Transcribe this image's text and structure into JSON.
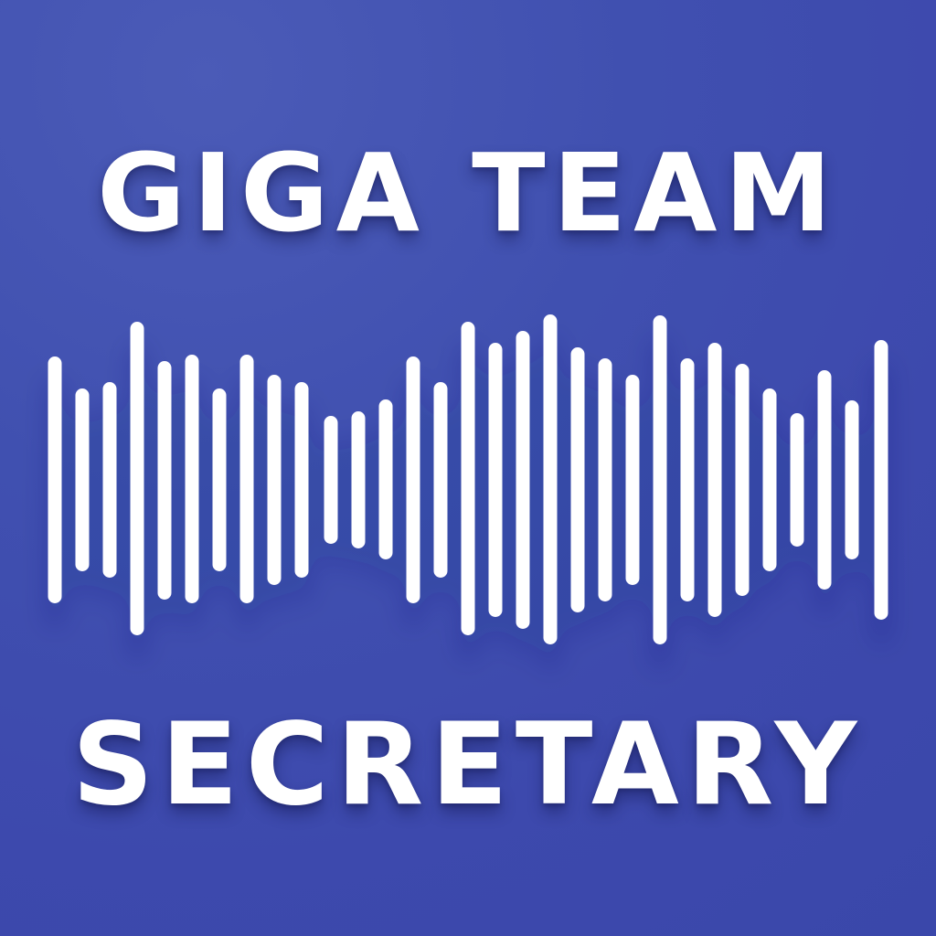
{
  "logo": {
    "line1": "GIGA TEAM",
    "line2": "SECRETARY",
    "icon": "sound-waveform-icon",
    "colors": {
      "background": "#3f4cad",
      "foreground": "#ffffff"
    }
  }
}
